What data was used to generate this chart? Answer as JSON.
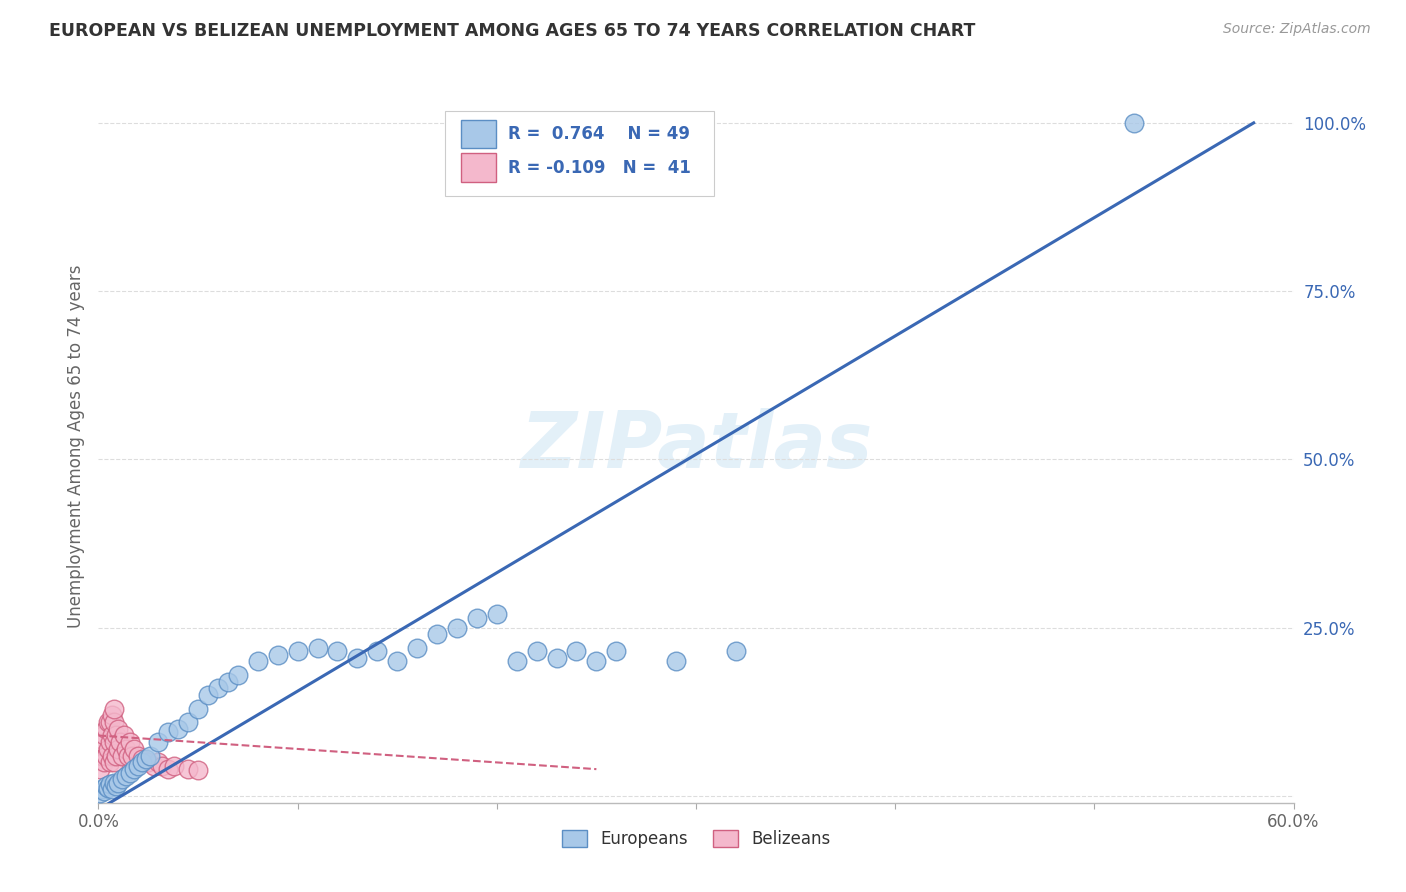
{
  "title": "EUROPEAN VS BELIZEAN UNEMPLOYMENT AMONG AGES 65 TO 74 YEARS CORRELATION CHART",
  "source": "Source: ZipAtlas.com",
  "ylabel": "Unemployment Among Ages 65 to 74 years",
  "xlabel": "",
  "xlim": [
    0.0,
    0.6
  ],
  "ylim": [
    -0.01,
    1.05
  ],
  "xticks": [
    0.0,
    0.1,
    0.2,
    0.3,
    0.4,
    0.5,
    0.6
  ],
  "xtick_labels": [
    "0.0%",
    "",
    "",
    "",
    "",
    "",
    "60.0%"
  ],
  "yticks": [
    0.0,
    0.25,
    0.5,
    0.75,
    1.0
  ],
  "ytick_labels": [
    "",
    "25.0%",
    "50.0%",
    "75.0%",
    "100.0%"
  ],
  "euro_color": "#a8c8e8",
  "euro_edge_color": "#5b8ec4",
  "beliz_color": "#f4b8cc",
  "beliz_edge_color": "#d06080",
  "beliz_line_color": "#d06080",
  "euro_line_color": "#3a68b4",
  "r_euro": 0.764,
  "n_euro": 49,
  "r_beliz": -0.109,
  "n_beliz": 41,
  "watermark": "ZIPatlas",
  "legend_label_euro": "Europeans",
  "legend_label_beliz": "Belizeans",
  "euro_x": [
    0.001,
    0.002,
    0.003,
    0.004,
    0.005,
    0.006,
    0.007,
    0.008,
    0.009,
    0.01,
    0.012,
    0.014,
    0.016,
    0.018,
    0.02,
    0.022,
    0.024,
    0.026,
    0.03,
    0.035,
    0.04,
    0.045,
    0.05,
    0.055,
    0.06,
    0.065,
    0.07,
    0.08,
    0.09,
    0.1,
    0.11,
    0.12,
    0.13,
    0.14,
    0.15,
    0.16,
    0.17,
    0.18,
    0.19,
    0.2,
    0.21,
    0.22,
    0.23,
    0.24,
    0.25,
    0.26,
    0.29,
    0.32,
    0.52
  ],
  "euro_y": [
    0.005,
    0.01,
    0.008,
    0.015,
    0.012,
    0.018,
    0.01,
    0.02,
    0.015,
    0.02,
    0.025,
    0.03,
    0.035,
    0.04,
    0.045,
    0.05,
    0.055,
    0.06,
    0.08,
    0.095,
    0.1,
    0.11,
    0.13,
    0.15,
    0.16,
    0.17,
    0.18,
    0.2,
    0.21,
    0.215,
    0.22,
    0.215,
    0.205,
    0.215,
    0.2,
    0.22,
    0.24,
    0.25,
    0.265,
    0.27,
    0.2,
    0.215,
    0.205,
    0.215,
    0.2,
    0.215,
    0.2,
    0.215,
    1.0
  ],
  "beliz_x": [
    0.001,
    0.002,
    0.002,
    0.003,
    0.003,
    0.004,
    0.004,
    0.005,
    0.005,
    0.006,
    0.006,
    0.006,
    0.007,
    0.007,
    0.007,
    0.008,
    0.008,
    0.008,
    0.008,
    0.009,
    0.009,
    0.01,
    0.01,
    0.011,
    0.012,
    0.013,
    0.014,
    0.015,
    0.016,
    0.017,
    0.018,
    0.02,
    0.022,
    0.025,
    0.028,
    0.03,
    0.032,
    0.035,
    0.038,
    0.045,
    0.05
  ],
  "beliz_y": [
    0.04,
    0.06,
    0.08,
    0.05,
    0.09,
    0.06,
    0.1,
    0.07,
    0.11,
    0.05,
    0.08,
    0.11,
    0.06,
    0.09,
    0.12,
    0.05,
    0.08,
    0.11,
    0.13,
    0.06,
    0.09,
    0.07,
    0.1,
    0.08,
    0.06,
    0.09,
    0.07,
    0.06,
    0.08,
    0.06,
    0.07,
    0.06,
    0.055,
    0.05,
    0.045,
    0.05,
    0.045,
    0.04,
    0.045,
    0.04,
    0.038
  ],
  "euro_trendline_x": [
    0.0,
    0.58
  ],
  "euro_trendline_y": [
    -0.02,
    1.0
  ],
  "beliz_trendline_x": [
    0.0,
    0.25
  ],
  "beliz_trendline_y": [
    0.09,
    0.04
  ]
}
